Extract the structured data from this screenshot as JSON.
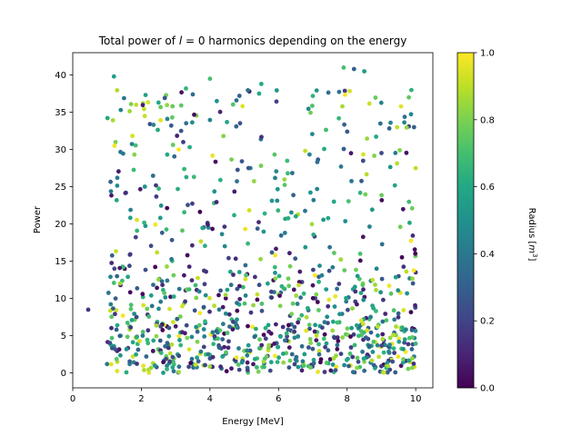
{
  "chart_data": {
    "type": "scatter",
    "title": "Total power of l = 0 harmonics depending on the energy",
    "title_parts": {
      "prefix": "Total power of ",
      "variable": "l",
      "relation": " = 0",
      "suffix": " harmonics depending on the energy"
    },
    "xlabel": "Energy [MeV]",
    "ylabel": "Power",
    "colorbar_label": "Radius [m³]",
    "colorbar_label_parts": {
      "text": "Radius [",
      "var": "m",
      "exp": "3",
      "close": "]"
    },
    "colormap": "viridis",
    "xlim": [
      0,
      10.5
    ],
    "ylim": [
      -2,
      43
    ],
    "clim": [
      0,
      1
    ],
    "xticks": [
      0,
      2,
      4,
      6,
      8,
      10
    ],
    "yticks": [
      0,
      5,
      10,
      15,
      20,
      25,
      30,
      35,
      40
    ],
    "cticks": [
      0.0,
      0.2,
      0.4,
      0.6,
      0.8,
      1.0
    ],
    "xtick_labels": [
      "0",
      "2",
      "4",
      "6",
      "8",
      "10"
    ],
    "ytick_labels": [
      "0",
      "5",
      "10",
      "15",
      "20",
      "25",
      "30",
      "35",
      "40"
    ],
    "ctick_labels": [
      "0.0",
      "0.2",
      "0.4",
      "0.6",
      "0.8",
      "1.0"
    ],
    "grid": false,
    "n_points": 1000,
    "points": [
      [
        0.45,
        8.5,
        0.15
      ],
      [
        1.2,
        39.8,
        0.55
      ],
      [
        1.4,
        35.3,
        0.45
      ],
      [
        1.7,
        36.1,
        0.8
      ],
      [
        1.85,
        36.0,
        0.9
      ],
      [
        2.05,
        36.2,
        0.85
      ],
      [
        2.5,
        36.3,
        0.6
      ],
      [
        2.9,
        34.3,
        0.75
      ],
      [
        3.3,
        38.2,
        0.65
      ],
      [
        3.5,
        37.4,
        0.35
      ],
      [
        4.0,
        39.5,
        0.7
      ],
      [
        4.2,
        36.5,
        0.5
      ],
      [
        5.5,
        38.8,
        0.6
      ],
      [
        7.0,
        37.2,
        0.65
      ],
      [
        7.9,
        41.0,
        0.7
      ],
      [
        8.2,
        40.8,
        0.3
      ],
      [
        8.5,
        40.5,
        0.55
      ],
      [
        9.8,
        37.0,
        0.75
      ],
      [
        9.8,
        33.1,
        0.2
      ],
      [
        9.95,
        33.0,
        0.3
      ],
      [
        10.0,
        27.5,
        0.9
      ],
      [
        10.0,
        13.5,
        0.15
      ],
      [
        9.9,
        6.0,
        0.1
      ],
      [
        9.95,
        2.2,
        0.35
      ],
      [
        1.25,
        31.0,
        0.8
      ],
      [
        1.3,
        26.2,
        0.4
      ],
      [
        1.55,
        24.2,
        0.3
      ],
      [
        1.1,
        12.9,
        0.45
      ],
      [
        1.2,
        12.1,
        0.7
      ],
      [
        1.25,
        10.0,
        0.3
      ],
      [
        1.3,
        6.4,
        0.6
      ],
      [
        1.4,
        5.0,
        0.65
      ],
      [
        1.2,
        3.6,
        0.5
      ],
      [
        1.3,
        1.5,
        0.9
      ],
      [
        1.0,
        1.2,
        0.4
      ],
      [
        7.45,
        1.3,
        0.55
      ],
      [
        8.1,
        1.0,
        0.95
      ],
      [
        8.5,
        1.5,
        0.8
      ],
      [
        6.5,
        1.8,
        0.35
      ],
      [
        3.5,
        1.2,
        0.5
      ]
    ]
  }
}
